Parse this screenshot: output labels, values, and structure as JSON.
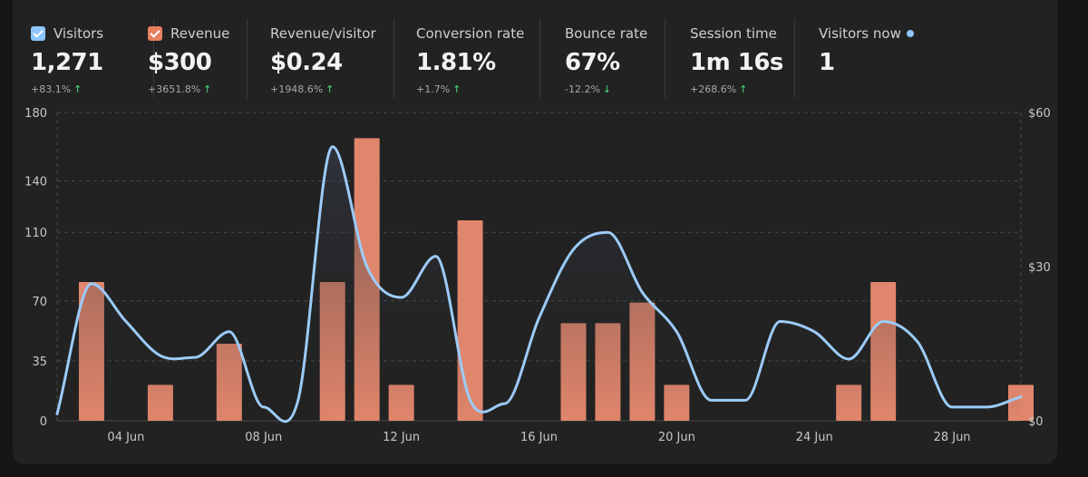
{
  "metrics": [
    {
      "label": "Visitors",
      "value": "1,271",
      "delta": "+83.1%",
      "dir": "up",
      "checkbox": true,
      "color": "#8ec5fc"
    },
    {
      "label": "Revenue",
      "value": "$300",
      "delta": "+3651.8%",
      "dir": "up",
      "checkbox": true,
      "color": "#e8805f"
    },
    {
      "label": "Revenue/visitor",
      "value": "$0.24",
      "delta": "+1948.6%",
      "dir": "up"
    },
    {
      "label": "Conversion rate",
      "value": "1.81%",
      "delta": "+1.7%",
      "dir": "up"
    },
    {
      "label": "Bounce rate",
      "value": "67%",
      "delta": "-12.2%",
      "dir": "down"
    },
    {
      "label": "Session time",
      "value": "1m 16s",
      "delta": "+268.6%",
      "dir": "up"
    },
    {
      "label": "Visitors now",
      "value": "1",
      "live_color": "#8ec5fc"
    }
  ],
  "icons": {
    "arrow_up": "↑",
    "arrow_down": "↓"
  },
  "colors": {
    "visitors_line": "#9ccbf8",
    "revenue_bar": "#e0866c",
    "grid": "#4a4a4a",
    "axis_text": "#c8c8c8"
  },
  "chart_data": {
    "type": "line+bar",
    "x": [
      "02 Jun",
      "03 Jun",
      "04 Jun",
      "05 Jun",
      "06 Jun",
      "07 Jun",
      "08 Jun",
      "09 Jun",
      "10 Jun",
      "11 Jun",
      "12 Jun",
      "13 Jun",
      "14 Jun",
      "15 Jun",
      "16 Jun",
      "17 Jun",
      "18 Jun",
      "19 Jun",
      "20 Jun",
      "21 Jun",
      "22 Jun",
      "23 Jun",
      "24 Jun",
      "25 Jun",
      "26 Jun",
      "27 Jun",
      "28 Jun",
      "29 Jun",
      "30 Jun"
    ],
    "xticks": [
      "04 Jun",
      "08 Jun",
      "12 Jun",
      "16 Jun",
      "20 Jun",
      "24 Jun",
      "28 Jun"
    ],
    "series": [
      {
        "name": "Visitors",
        "type": "line",
        "axis": "left",
        "values": [
          4,
          80,
          58,
          38,
          37,
          52,
          8,
          12,
          160,
          90,
          72,
          96,
          12,
          10,
          60,
          100,
          110,
          75,
          52,
          12,
          12,
          58,
          52,
          36,
          58,
          46,
          8,
          8,
          14
        ]
      },
      {
        "name": "Revenue",
        "type": "bar",
        "axis": "right",
        "values": [
          0,
          27,
          0,
          7,
          0,
          15,
          0,
          0,
          27,
          55,
          7,
          0,
          39,
          0,
          0,
          19,
          19,
          23,
          7,
          0,
          0,
          0,
          0,
          7,
          27,
          0,
          0,
          0,
          7
        ]
      }
    ],
    "y_left": {
      "ticks": [
        0,
        35,
        70,
        110,
        140,
        180
      ],
      "ylim": [
        0,
        180
      ]
    },
    "y_right": {
      "ticks": [
        "$0",
        "$30",
        "$60"
      ],
      "ylim": [
        0,
        60
      ]
    }
  }
}
